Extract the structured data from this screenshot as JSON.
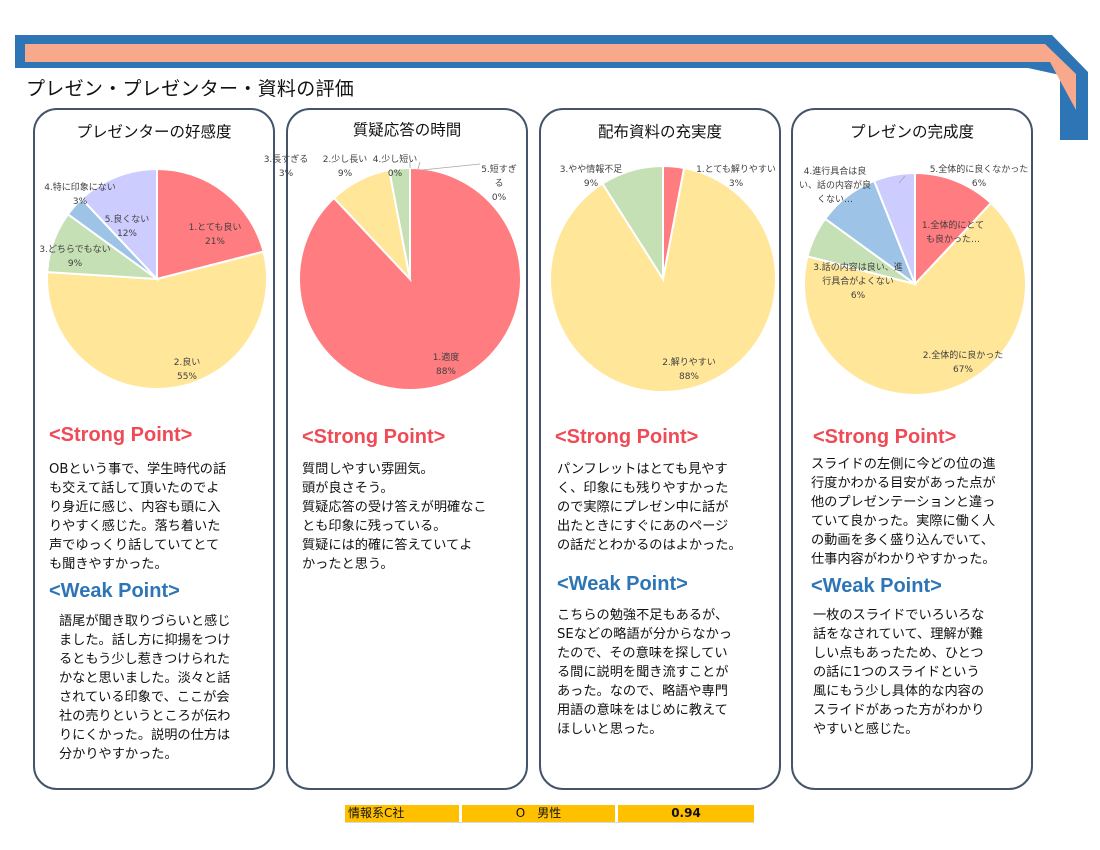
{
  "page": {
    "title": "プレゼン・プレゼンター・資料の評価"
  },
  "cards": [
    {
      "title": "プレゼンターの好感度",
      "strong_heading": "<Strong Point>",
      "strong_text": "OBという事で、学生時代の話\nも交えて話して頂いたのでよ\nり身近に感じ、内容も頭に入\nりやすく感じた。落ち着いた\n声でゆっくり話していてとて\nも聞きやすかった。",
      "weak_heading": "<Weak Point>",
      "weak_text": "語尾が聞き取りづらいと感じ\nました。話し方に抑揚をつけ\nるともう少し惹きつけられた\nかなと思いました。淡々と話\nされている印象で、ここが会\n社の売りというところが伝わ\nりにくかった。説明の仕方は\n分かりやすかった。"
    },
    {
      "title": "質疑応答の時間",
      "strong_heading": "<Strong Point>",
      "strong_text": "質問しやすい雰囲気。\n頭が良さそう。\n質疑応答の受け答えが明確なこ\nとも印象に残っている。\n質疑には的確に答えていてよ\nかったと思う。",
      "weak_heading": "",
      "weak_text": ""
    },
    {
      "title": "配布資料の充実度",
      "strong_heading": "<Strong Point>",
      "strong_text": "パンフレットはとても見やす\nく、印象にも残りやすかった\nので実際にプレゼン中に話が\n出たときにすぐにあのページ\nの話だとわかるのはよかった。",
      "weak_heading": "<Weak Point>",
      "weak_text": "こちらの勉強不足もあるが、\nSEなどの略語が分からなかっ\nたので、その意味を探してい\nる間に説明を聞き流すことが\nあった。なので、略語や専門\n用語の意味をはじめに教えて\nほしいと思った。"
    },
    {
      "title": "プレゼンの完成度",
      "strong_heading": "<Strong Point>",
      "strong_text": "スライドの左側に今どの位の進\n行度かわかる目安があった点が\n他のプレゼンテーションと違っ\nていて良かった。実際に働く人\nの動画を多く盛り込んでいて、\n仕事内容がわかりやすかった。",
      "weak_heading": "<Weak Point>",
      "weak_text": "一枚のスライドでいろいろな\n話をなされていて、理解が難\nしい点もあったため、ひとつ\nの話に1つのスライドという\n風にもう少し具体的な内容の\nスライドがあった方がわかり\nやすいと感じた。"
    }
  ],
  "chart_data": [
    {
      "type": "pie",
      "title": "プレゼンターの好感度",
      "slices": [
        {
          "name": "1.とても良い",
          "value": 21,
          "label_lines": [
            "1.とても良い",
            "21%"
          ],
          "color": "#ff7c80"
        },
        {
          "name": "2.良い",
          "value": 55,
          "label_lines": [
            "2.良い",
            "55%"
          ],
          "color": "#ffe699"
        },
        {
          "name": "3.どちらでもない",
          "value": 9,
          "label_lines": [
            "3.どちらでもない",
            "9%"
          ],
          "color": "#c5e0b4"
        },
        {
          "name": "4.特に印象にない",
          "value": 3,
          "label_lines": [
            "4.特に印象にない",
            "3%"
          ],
          "color": "#9dc3e6"
        },
        {
          "name": "5.良くない",
          "value": 12,
          "label_lines": [
            "5.良くない",
            "12%"
          ],
          "color": "#ccccff"
        }
      ]
    },
    {
      "type": "pie",
      "title": "質疑応答の時間",
      "slices": [
        {
          "name": "1.適度",
          "value": 88,
          "label_lines": [
            "1.適度",
            "88%"
          ],
          "color": "#ff7c80"
        },
        {
          "name": "2.少し長い",
          "value": 9,
          "label_lines": [
            "2.少し長い",
            "9%"
          ],
          "color": "#ffe699"
        },
        {
          "name": "3.長すぎる",
          "value": 3,
          "label_lines": [
            "3.長すぎる",
            "3%"
          ],
          "color": "#c5e0b4"
        },
        {
          "name": "4.少し短い",
          "value": 0,
          "label_lines": [
            "4.少し短い",
            "0%"
          ],
          "color": "#9dc3e6"
        },
        {
          "name": "5.短すぎる",
          "value": 0,
          "label_lines": [
            "5.短すぎ",
            "る",
            "0%"
          ],
          "color": "#ccccff"
        }
      ]
    },
    {
      "type": "pie",
      "title": "配布資料の充実度",
      "slices": [
        {
          "name": "1.とても解りやすい",
          "value": 3,
          "label_lines": [
            "1.とても解りやすい",
            "3%"
          ],
          "color": "#ff7c80"
        },
        {
          "name": "2.解りやすい",
          "value": 88,
          "label_lines": [
            "2.解りやすい",
            "88%"
          ],
          "color": "#ffe699"
        },
        {
          "name": "3.やや情報不足",
          "value": 9,
          "label_lines": [
            "3.やや情報不足",
            "9%"
          ],
          "color": "#c5e0b4"
        }
      ]
    },
    {
      "type": "pie",
      "title": "プレゼンの完成度",
      "slices": [
        {
          "name": "1.全体的にとても良かった",
          "value": 12,
          "label_lines": [
            "1.全体的にとて",
            "も良かった…"
          ],
          "color": "#ff7c80"
        },
        {
          "name": "2.全体的に良かった",
          "value": 67,
          "label_lines": [
            "2.全体的に良かった",
            "67%"
          ],
          "color": "#ffe699"
        },
        {
          "name": "3.話の内容は良い、進行具合がよくない",
          "value": 6,
          "label_lines": [
            "3.話の内容は良い、進",
            "行具合がよくない",
            "6%"
          ],
          "color": "#c5e0b4"
        },
        {
          "name": "4.進行具合は良い、話の内容が良くない",
          "value": 9,
          "label_lines": [
            "4.進行具合は良",
            "い、話の内容が良",
            "くない…"
          ],
          "color": "#9dc3e6"
        },
        {
          "name": "5.全体的に良くなかった",
          "value": 6,
          "label_lines": [
            "5.全体的に良くなかった",
            "6%"
          ],
          "color": "#ccccff"
        }
      ]
    }
  ],
  "footer": {
    "company": "情報系C社",
    "person": "O　男性",
    "score": "0.94"
  },
  "colors": {
    "banner_blue": "#2e75b6",
    "banner_salmon": "#f8a98b",
    "card_border": "#44546a",
    "footer_bg": "#ffc000"
  }
}
